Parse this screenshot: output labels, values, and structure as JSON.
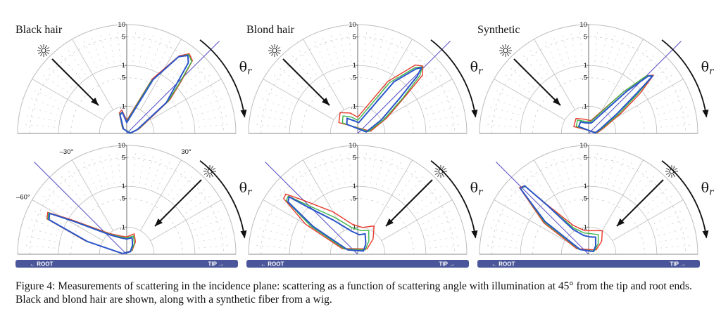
{
  "figure": {
    "colors": {
      "red": "#e8392b",
      "green": "#3fb54a",
      "blue": "#2b55c9",
      "grid": "#bdbdbd",
      "bar": "#4a5699"
    },
    "top_row_titles": [
      "Black hair",
      "Blond hair",
      "Synthetic"
    ],
    "radial_ticks": [
      "10",
      "5",
      "1",
      ".5",
      ".1"
    ],
    "angle_labels": [
      "–30°",
      "30°",
      "–60°"
    ],
    "theta_symbol": "θ",
    "theta_subscript": "r",
    "bar_left_label": "← ROOT",
    "bar_right_label": "TIP →",
    "light_icon": "sun-icon"
  },
  "caption": "Figure 4: Measurements of scattering in the incidence plane: scattering as a function of scattering angle with illumination at 45° from the tip and root ends. Black and blond hair are shown, along with a synthetic fiber from a wig."
}
